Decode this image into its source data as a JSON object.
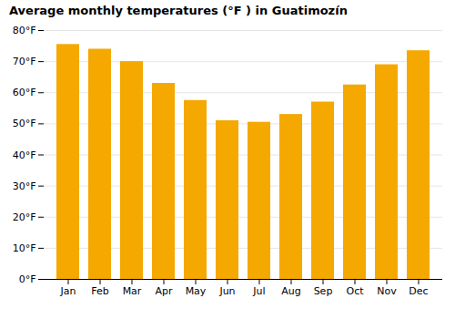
{
  "chart_data": {
    "type": "bar",
    "title": "Average monthly temperatures (°F ) in Guatimozín",
    "categories": [
      "Jan",
      "Feb",
      "Mar",
      "Apr",
      "May",
      "Jun",
      "Jul",
      "Aug",
      "Sep",
      "Oct",
      "Nov",
      "Dec"
    ],
    "values": [
      75.5,
      74,
      70,
      63,
      57.5,
      51,
      50.5,
      53,
      57,
      62.5,
      69,
      73.5
    ],
    "color": "#F5A800",
    "ylim": [
      0,
      80
    ],
    "yticks": [
      {
        "value": 0,
        "label": "0°F"
      },
      {
        "value": 10,
        "label": "10°F"
      },
      {
        "value": 20,
        "label": "20°F"
      },
      {
        "value": 30,
        "label": "30°F"
      },
      {
        "value": 40,
        "label": "40°F"
      },
      {
        "value": 50,
        "label": "50°F"
      },
      {
        "value": 60,
        "label": "60°F"
      },
      {
        "value": 70,
        "label": "70°F"
      },
      {
        "value": 80,
        "label": "80°F"
      }
    ],
    "grid": true
  }
}
